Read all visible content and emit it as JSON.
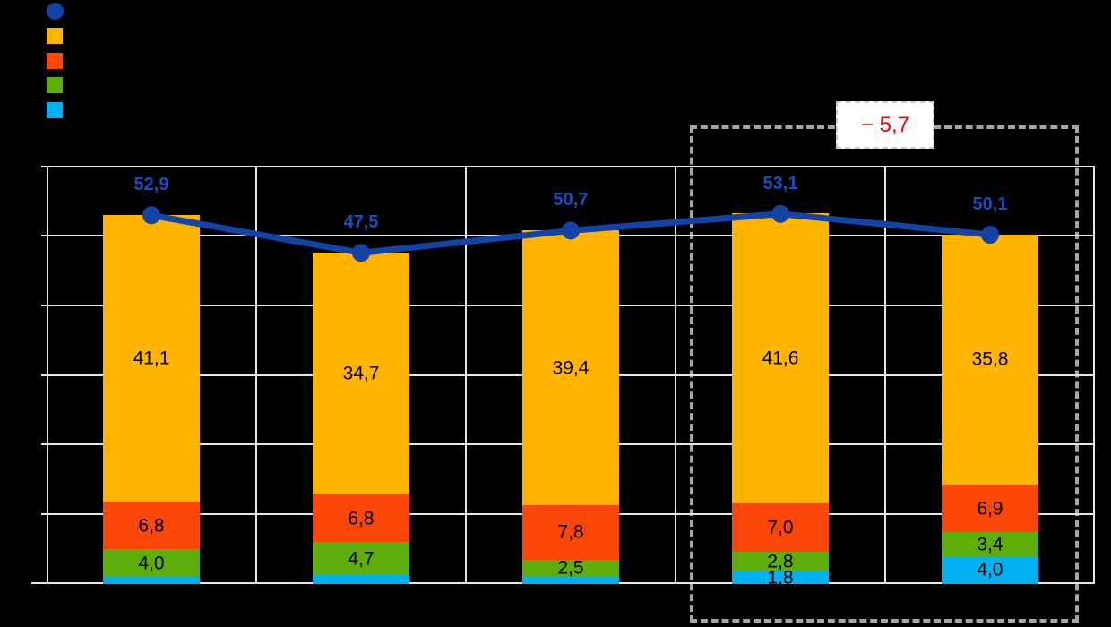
{
  "chart": {
    "background": "#000000",
    "grid_color": "#e6e6e6"
  },
  "legend": {
    "items": [
      {
        "name": "total-line",
        "shape": "circle",
        "color": "#1243a5",
        "label": ""
      },
      {
        "name": "orange-series",
        "shape": "square",
        "color": "#ffb400",
        "label": ""
      },
      {
        "name": "red-series",
        "shape": "square",
        "color": "#fa4608",
        "label": ""
      },
      {
        "name": "green-series",
        "shape": "square",
        "color": "#5dad0b",
        "label": ""
      },
      {
        "name": "cyan-series",
        "shape": "square",
        "color": "#00b0f0",
        "label": ""
      }
    ]
  },
  "chart_data": {
    "type": "combo",
    "bar_mode": "stacked",
    "categories": [
      "",
      "",
      "",
      "",
      ""
    ],
    "y_axis": {
      "min": 0,
      "max": 60,
      "gridline_step": 10,
      "tick_labels_visible": false
    },
    "line_series": {
      "name": "total-line",
      "color": "#1243a5",
      "label_color": "#1550be",
      "values": [
        52.9,
        47.5,
        50.7,
        53.1,
        50.1
      ],
      "labels": [
        "52,9",
        "47,5",
        "50,7",
        "53,1",
        "50,1"
      ]
    },
    "bar_series": [
      {
        "name": "cyan",
        "color": "#00b0f0",
        "values": [
          1.0,
          1.3,
          1.0,
          1.8,
          4.0
        ],
        "labels": [
          "",
          "",
          "",
          "1,8",
          "4,0"
        ]
      },
      {
        "name": "green",
        "color": "#5dad0b",
        "values": [
          4.0,
          4.7,
          2.5,
          2.8,
          3.4
        ],
        "labels": [
          "4,0",
          "4,7",
          "2,5",
          "2,8",
          "3,4"
        ]
      },
      {
        "name": "red",
        "color": "#fa4608",
        "values": [
          6.8,
          6.8,
          7.8,
          7.0,
          6.9
        ],
        "labels": [
          "6,8",
          "6,8",
          "7,8",
          "7,0",
          "6,9"
        ]
      },
      {
        "name": "orange",
        "color": "#ffb400",
        "values": [
          41.1,
          34.7,
          39.4,
          41.6,
          35.8
        ],
        "labels": [
          "41,1",
          "34,7",
          "39,4",
          "41,6",
          "35,8"
        ]
      }
    ],
    "annotation": {
      "label": "− 5,7",
      "text_color": "#ff0000",
      "box_background": "#ffffff",
      "highlight_border_color": "#a6a6a6",
      "highlighted_categories": [
        3,
        4
      ]
    }
  }
}
